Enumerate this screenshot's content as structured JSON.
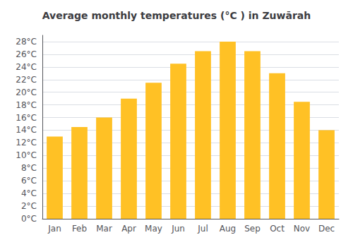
{
  "chart_data": {
    "type": "bar",
    "title": "Average monthly temperatures (°C ) in Zuwārah",
    "categories": [
      "Jan",
      "Feb",
      "Mar",
      "Apr",
      "May",
      "Jun",
      "Jul",
      "Aug",
      "Sep",
      "Oct",
      "Nov",
      "Dec"
    ],
    "values": [
      13,
      14.5,
      16,
      19,
      21.5,
      24.5,
      26.5,
      28,
      26.5,
      23,
      18.5,
      14
    ],
    "color": "#FFC125",
    "ylim": [
      0,
      29
    ],
    "yticks": [
      {
        "value": 0,
        "label": "0°C"
      },
      {
        "value": 2,
        "label": "2°C"
      },
      {
        "value": 4,
        "label": "4°C"
      },
      {
        "value": 6,
        "label": "6°C"
      },
      {
        "value": 8,
        "label": "8°C"
      },
      {
        "value": 10,
        "label": "10°C"
      },
      {
        "value": 12,
        "label": "12°C"
      },
      {
        "value": 14,
        "label": "14°C"
      },
      {
        "value": 16,
        "label": "16°C"
      },
      {
        "value": 18,
        "label": "18°C"
      },
      {
        "value": 20,
        "label": "20°C"
      },
      {
        "value": 22,
        "label": "22°C"
      },
      {
        "value": 24,
        "label": "24°C"
      },
      {
        "value": 26,
        "label": "26°C"
      },
      {
        "value": 28,
        "label": "28°C"
      }
    ],
    "grid": true
  }
}
